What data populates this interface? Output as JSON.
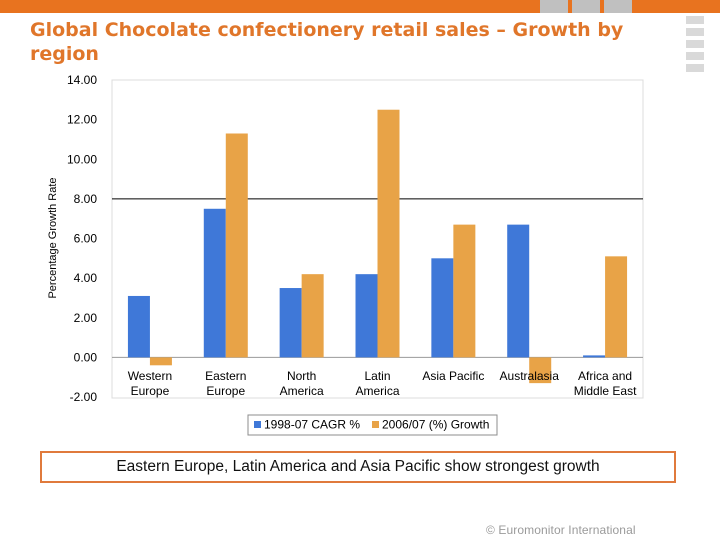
{
  "slide": {
    "title": "Global Chocolate confectionery retail sales – Growth by region",
    "note": "Eastern Europe, Latin America and Asia Pacific show strongest growth",
    "footer": "© Euromonitor International"
  },
  "colors": {
    "accent_orange": "#e8731f",
    "series_blue": "#3f78d8",
    "series_orange": "#e8a347"
  },
  "chart_data": {
    "type": "bar",
    "title": "",
    "xlabel": "",
    "ylabel": "Percentage Growth Rate",
    "ylim": [
      -2,
      14
    ],
    "yticks": [
      "14.00",
      "12.00",
      "10.00",
      "8.00",
      "6.00",
      "4.00",
      "2.00",
      "0.00",
      "-2.00"
    ],
    "grid": false,
    "reference_line": 8.0,
    "legend_position": "bottom",
    "categories": [
      [
        "Western",
        "Europe"
      ],
      [
        "Eastern",
        "Europe"
      ],
      [
        "North",
        "America"
      ],
      [
        "Latin",
        "America"
      ],
      [
        "Asia Pacific"
      ],
      [
        "Australasia"
      ],
      [
        "Africa and",
        "Middle East"
      ]
    ],
    "series": [
      {
        "name": "1998-07 CAGR %",
        "color": "#3f78d8",
        "values": [
          3.1,
          7.5,
          3.5,
          4.2,
          5.0,
          6.7,
          0.1
        ]
      },
      {
        "name": "2006/07 (%) Growth",
        "color": "#e8a347",
        "values": [
          -0.4,
          11.3,
          4.2,
          12.5,
          6.7,
          -1.3,
          5.1
        ]
      }
    ]
  }
}
